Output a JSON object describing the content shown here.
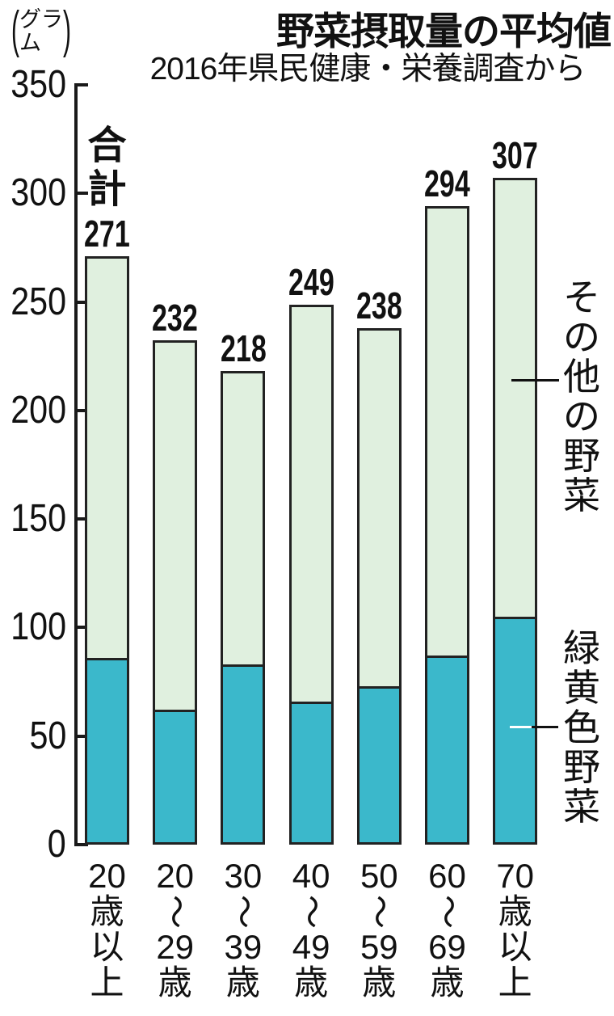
{
  "header": {
    "title": "野菜摂取量の平均値",
    "subtitle": "2016年県民健康・栄養調査から",
    "unit_open": "(",
    "unit_line1": "グラ",
    "unit_line2": "ム",
    "unit_close": ")"
  },
  "total_label": "合計",
  "yaxis": {
    "ticks": [
      350,
      300,
      250,
      200,
      150,
      100,
      50,
      0
    ]
  },
  "legend": {
    "other": "その他の野菜",
    "green_yellow": "緑黄色野菜"
  },
  "chart_data": {
    "type": "bar",
    "stacked": true,
    "title": "野菜摂取量の平均値",
    "subtitle": "2016年県民健康・栄養調査から",
    "unit": "グラム",
    "ylim": [
      0,
      350
    ],
    "ytick_interval": 50,
    "grid": false,
    "legend_position": "right",
    "categories": [
      "20歳以上",
      "20〜29歳",
      "30〜39歳",
      "40〜49歳",
      "50〜59歳",
      "60〜69歳",
      "70歳以上"
    ],
    "category_tokens": [
      [
        "20",
        "歳",
        "以",
        "上"
      ],
      [
        "20",
        "〜",
        "29",
        "歳"
      ],
      [
        "30",
        "〜",
        "39",
        "歳"
      ],
      [
        "40",
        "〜",
        "49",
        "歳"
      ],
      [
        "50",
        "〜",
        "59",
        "歳"
      ],
      [
        "60",
        "〜",
        "69",
        "歳"
      ],
      [
        "70",
        "歳",
        "以",
        "上"
      ]
    ],
    "totals": [
      271,
      232,
      218,
      249,
      238,
      294,
      307
    ],
    "series": [
      {
        "name": "緑黄色野菜",
        "color": "#3bb8cb",
        "values": [
          86,
          62,
          83,
          66,
          73,
          87,
          105
        ]
      },
      {
        "name": "その他の野菜",
        "color": "#e0f0df",
        "values": [
          185,
          170,
          135,
          183,
          165,
          207,
          202
        ]
      }
    ],
    "colors": {
      "green_yellow": "#3bb8cb",
      "other": "#e0f0df",
      "outline": "#222222"
    }
  }
}
